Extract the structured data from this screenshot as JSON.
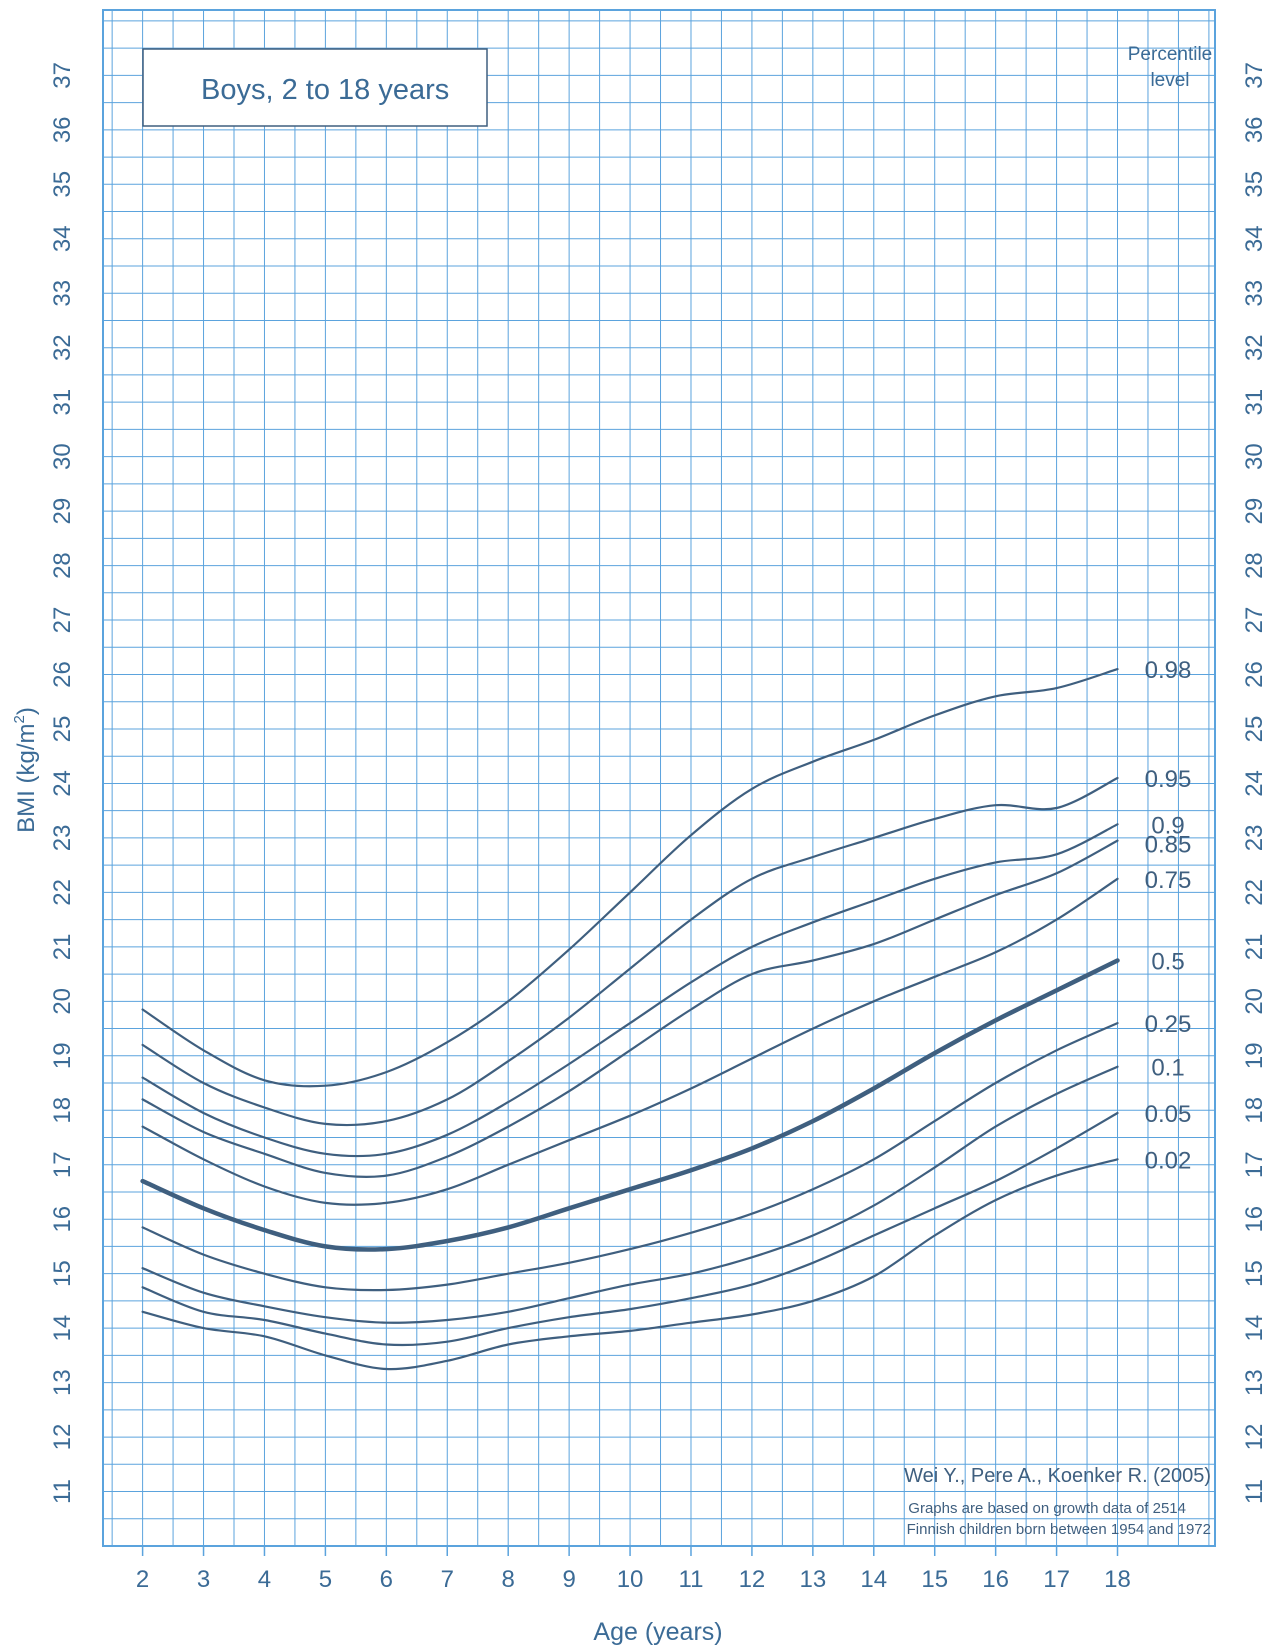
{
  "chart_data": {
    "type": "line",
    "title": "Boys, 2 to 18 years",
    "xlabel": "Age (years)",
    "ylabel_prefix": "BMI (kg/m",
    "ylabel_sup": "2",
    "ylabel_suffix": ")",
    "xlim": [
      1.35,
      19.6
    ],
    "ylim": [
      10,
      38.2
    ],
    "x_ticks": [
      2,
      3,
      4,
      5,
      6,
      7,
      8,
      9,
      10,
      11,
      12,
      13,
      14,
      15,
      16,
      17,
      18
    ],
    "y_ticks": [
      11,
      12,
      13,
      14,
      15,
      16,
      17,
      18,
      19,
      20,
      21,
      22,
      23,
      24,
      25,
      26,
      27,
      28,
      29,
      30,
      31,
      32,
      33,
      34,
      35,
      36,
      37
    ],
    "grid": true,
    "legend_header": [
      "Percentile",
      "level"
    ],
    "source_line": "Wei Y., Pere A., Koenker R. (2005)",
    "note_lines": [
      "Graphs are based on growth data of 2514",
      "Finnish children born between 1954 and 1972"
    ],
    "x": [
      2,
      3,
      4,
      5,
      6,
      7,
      8,
      9,
      10,
      11,
      12,
      13,
      14,
      15,
      16,
      17,
      18
    ],
    "series": [
      {
        "name": "0.98",
        "values": [
          19.85,
          19.1,
          18.55,
          18.45,
          18.7,
          19.25,
          20.0,
          20.95,
          22.0,
          23.05,
          23.9,
          24.4,
          24.8,
          25.25,
          25.6,
          25.75,
          26.1
        ]
      },
      {
        "name": "0.95",
        "values": [
          19.2,
          18.5,
          18.05,
          17.75,
          17.8,
          18.2,
          18.9,
          19.7,
          20.6,
          21.5,
          22.25,
          22.65,
          23.0,
          23.35,
          23.6,
          23.55,
          24.1
        ]
      },
      {
        "name": "0.9",
        "values": [
          18.6,
          17.95,
          17.5,
          17.2,
          17.2,
          17.55,
          18.15,
          18.85,
          19.6,
          20.35,
          21.0,
          21.45,
          21.85,
          22.25,
          22.55,
          22.7,
          23.25
        ]
      },
      {
        "name": "0.85",
        "values": [
          18.2,
          17.6,
          17.2,
          16.85,
          16.8,
          17.15,
          17.7,
          18.35,
          19.1,
          19.85,
          20.5,
          20.75,
          21.05,
          21.5,
          21.95,
          22.35,
          22.95
        ]
      },
      {
        "name": "0.75",
        "values": [
          17.7,
          17.1,
          16.6,
          16.3,
          16.3,
          16.55,
          17.0,
          17.45,
          17.9,
          18.4,
          18.95,
          19.5,
          20.0,
          20.45,
          20.9,
          21.5,
          22.25
        ]
      },
      {
        "name": "0.5",
        "values": [
          16.7,
          16.2,
          15.8,
          15.5,
          15.45,
          15.6,
          15.85,
          16.2,
          16.55,
          16.9,
          17.3,
          17.8,
          18.4,
          19.05,
          19.65,
          20.2,
          20.75
        ]
      },
      {
        "name": "0.25",
        "values": [
          15.85,
          15.35,
          15.0,
          14.75,
          14.7,
          14.8,
          15.0,
          15.2,
          15.45,
          15.75,
          16.1,
          16.55,
          17.1,
          17.8,
          18.5,
          19.1,
          19.6
        ]
      },
      {
        "name": "0.1",
        "values": [
          15.1,
          14.65,
          14.4,
          14.2,
          14.1,
          14.15,
          14.3,
          14.55,
          14.8,
          15.0,
          15.3,
          15.7,
          16.25,
          16.95,
          17.7,
          18.3,
          18.8
        ]
      },
      {
        "name": "0.05",
        "values": [
          14.75,
          14.3,
          14.15,
          13.9,
          13.7,
          13.75,
          14.0,
          14.2,
          14.35,
          14.55,
          14.8,
          15.2,
          15.7,
          16.2,
          16.7,
          17.3,
          17.95
        ]
      },
      {
        "name": "0.02",
        "values": [
          14.3,
          14.0,
          13.85,
          13.5,
          13.25,
          13.4,
          13.7,
          13.85,
          13.95,
          14.1,
          14.25,
          14.5,
          14.95,
          15.7,
          16.35,
          16.8,
          17.1
        ]
      }
    ],
    "label_y_positions": {
      "0.98": 26.1,
      "0.95": 24.1,
      "0.9": 23.25,
      "0.85": 22.9,
      "0.75": 22.25,
      "0.5": 20.75,
      "0.25": 19.6,
      "0.1": 18.8,
      "0.05": 17.95,
      "0.02": 17.1
    },
    "colors": {
      "grid": "#5ba3dd",
      "axis_text": "#3b6b96",
      "curve": "#3f5f7f",
      "background": "#ffffff"
    }
  }
}
